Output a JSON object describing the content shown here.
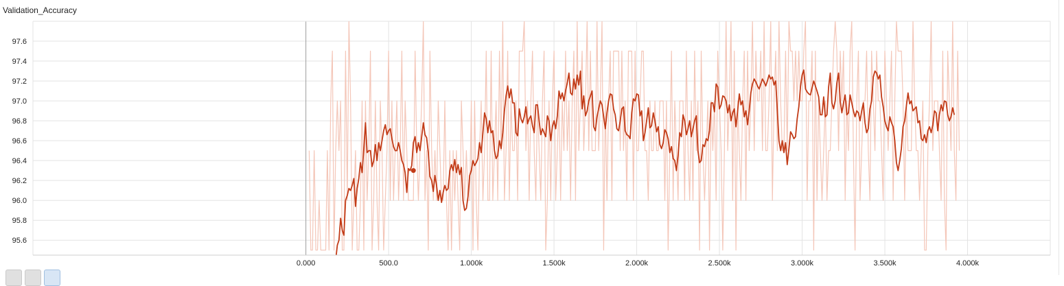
{
  "card": {
    "title": "Validation_Accuracy"
  },
  "colors": {
    "raw": "#f4c6b8",
    "smoothed": "#c23b17",
    "grid": "#e3e3e3",
    "axis": "#9e9e9e"
  },
  "chart_data": {
    "type": "line",
    "title": "Validation_Accuracy",
    "xlabel": "",
    "ylabel": "",
    "xlim": [
      -1650,
      4500
    ],
    "ylim": [
      95.45,
      97.8
    ],
    "x_ticks": [
      0,
      500,
      1000,
      1500,
      2000,
      2500,
      3000,
      3500,
      4000
    ],
    "x_tick_labels": [
      "0.000",
      "500.0",
      "1.000k",
      "1.500k",
      "2.000k",
      "2.500k",
      "3.000k",
      "3.500k",
      "4.000k"
    ],
    "y_ticks": [
      95.6,
      95.8,
      96.0,
      96.2,
      96.4,
      96.6,
      96.8,
      97.0,
      97.2,
      97.4,
      97.6
    ],
    "y_tick_labels": [
      "95.6",
      "95.8",
      "96.0",
      "96.2",
      "96.4",
      "96.6",
      "96.8",
      "97.0",
      "97.2",
      "97.4",
      "97.6"
    ],
    "grid": true,
    "highlight_point": {
      "x": 650,
      "y": 96.3
    },
    "series": [
      {
        "style": "raw",
        "x_start": 20,
        "x_step": 10,
        "values": [
          96.5,
          95.5,
          95.5,
          96.5,
          95.5,
          95.5,
          96.0,
          95.5,
          95.5,
          95.5,
          95.5,
          96.5,
          95.5,
          97.0,
          97.5,
          95.5,
          96.5,
          97.0,
          96.5,
          97.0,
          95.5,
          95.5,
          97.5,
          96.0,
          97.8,
          97.0,
          95.5,
          96.0,
          96.5,
          95.5,
          95.5,
          96.0,
          97.0,
          95.5,
          97.0,
          96.0,
          96.5,
          97.5,
          95.5,
          96.0,
          97.0,
          96.0,
          95.5,
          97.0,
          96.5,
          95.5,
          96.0,
          96.5,
          97.5,
          96.0,
          97.0,
          96.0,
          96.5,
          97.0,
          96.0,
          96.5,
          97.5,
          96.0,
          97.0,
          96.5,
          96.0,
          96.0,
          96.0,
          96.0,
          97.5,
          96.5,
          96.0,
          96.5,
          97.0,
          97.8,
          96.0,
          96.5,
          95.5,
          97.5,
          96.5,
          96.0,
          96.5,
          96.0,
          97.0,
          96.5,
          96.0,
          96.0,
          97.0,
          96.0,
          95.5,
          96.5,
          95.5,
          96.5,
          96.0,
          96.5,
          96.0,
          95.5,
          97.0,
          96.5,
          96.0,
          96.5,
          96.0,
          96.0,
          97.0,
          95.5,
          97.0,
          96.0,
          95.5,
          96.5,
          97.0,
          96.0,
          96.5,
          97.5,
          96.0,
          96.0,
          97.5,
          96.0,
          96.5,
          97.0,
          96.0,
          97.5,
          96.5,
          97.8,
          96.0,
          96.5,
          97.5,
          96.0,
          97.0,
          96.5,
          96.5,
          97.0,
          96.0,
          97.5,
          97.5,
          97.5,
          97.8,
          96.5,
          97.0,
          96.0,
          97.0,
          97.5,
          96.5,
          96.0,
          97.0,
          96.5,
          96.0,
          97.0,
          97.5,
          95.5,
          96.0,
          97.0,
          96.0,
          97.0,
          97.5,
          96.0,
          96.5,
          97.0,
          96.0,
          97.0,
          96.5,
          97.5,
          96.5,
          97.0,
          96.0,
          97.0,
          97.5,
          96.0,
          97.8,
          96.5,
          97.0,
          97.5,
          96.5,
          97.0,
          97.8,
          96.5,
          97.5,
          96.5,
          96.5,
          96.5,
          97.8,
          96.5,
          97.0,
          97.8,
          95.5,
          97.0,
          96.0,
          97.0,
          97.5,
          96.0,
          97.5,
          97.5,
          97.5,
          97.5,
          96.5,
          97.5,
          96.5,
          97.0,
          96.0,
          97.5,
          97.5,
          97.5,
          96.0,
          97.5,
          96.5,
          96.5,
          97.0,
          97.5,
          97.5,
          96.5,
          96.5,
          96.0,
          97.0,
          96.5,
          96.5,
          97.0,
          96.5,
          96.5,
          97.0,
          97.0,
          97.0,
          96.0,
          97.0,
          95.5,
          96.5,
          97.5,
          96.0,
          97.0,
          96.5,
          96.0,
          97.0,
          97.0,
          97.0,
          96.0,
          97.5,
          96.5,
          96.0,
          97.0,
          96.0,
          97.5,
          96.5,
          97.0,
          95.5,
          97.5,
          96.5,
          96.0,
          96.5,
          97.0,
          95.5,
          97.0,
          96.5,
          97.0,
          96.0,
          97.5,
          97.0,
          96.5,
          95.5,
          96.5,
          97.8,
          96.5,
          97.0,
          97.8,
          96.0,
          97.5,
          95.5,
          97.0,
          96.5,
          96.0,
          97.0,
          97.5,
          96.0,
          97.5,
          96.5,
          97.0,
          97.8,
          96.5,
          97.5,
          97.0,
          97.0,
          97.5,
          96.5,
          97.8,
          96.5,
          96.5,
          97.0,
          97.8,
          96.0,
          97.0,
          97.5,
          96.5,
          97.8,
          97.0,
          96.5,
          96.5,
          97.5,
          96.5,
          97.8,
          97.5,
          97.5,
          97.0,
          97.5,
          97.0,
          97.5,
          97.0,
          97.0,
          97.5,
          97.8,
          96.0,
          97.0,
          97.0,
          97.5,
          95.5,
          97.5,
          96.0,
          97.0,
          96.5,
          96.0,
          96.5,
          97.0,
          96.0,
          96.5,
          96.5,
          97.0,
          97.5,
          97.8,
          97.5,
          96.5,
          97.5,
          97.0,
          97.5,
          96.0,
          97.0,
          96.5,
          97.5,
          97.8,
          96.5,
          95.5,
          97.0,
          97.5,
          96.0,
          96.5,
          97.0,
          97.0,
          97.5,
          96.5,
          96.0,
          97.5,
          97.0,
          96.5,
          97.5,
          97.0,
          97.0,
          96.5,
          96.0,
          97.5,
          97.0,
          96.5,
          97.0,
          97.5,
          96.0,
          97.0,
          97.8,
          97.5,
          97.5,
          97.5,
          97.0,
          96.0,
          97.0,
          96.5,
          96.5,
          96.5,
          97.8,
          97.0,
          96.5,
          96.5,
          96.0,
          96.5,
          97.0,
          95.5,
          95.5,
          96.5,
          97.0,
          97.8,
          96.5,
          97.0,
          97.0,
          97.0,
          96.5,
          96.0,
          97.5,
          96.0,
          95.5,
          97.5,
          97.0,
          96.5,
          97.8,
          96.5,
          96.0,
          97.5,
          96.5
        ]
      },
      {
        "style": "smoothed",
        "x_start": 180,
        "x_step": 10,
        "values": [
          95.4,
          95.55,
          95.6,
          95.82,
          95.7,
          95.65,
          96.0,
          96.05,
          96.12,
          96.1,
          96.15,
          96.22,
          95.94,
          96.12,
          96.22,
          96.38,
          96.28,
          96.52,
          96.78,
          96.48,
          96.5,
          96.5,
          96.34,
          96.4,
          96.56,
          96.4,
          96.58,
          96.5,
          96.6,
          96.7,
          96.76,
          96.66,
          96.7,
          96.72,
          96.62,
          96.54,
          96.5,
          96.5,
          96.58,
          96.5,
          96.4,
          96.36,
          96.28,
          96.08,
          96.32,
          96.3,
          96.35,
          96.58,
          96.64,
          96.48,
          96.58,
          96.5,
          96.64,
          96.78,
          96.66,
          96.63,
          96.48,
          96.24,
          96.2,
          96.09,
          96.25,
          96.15,
          96.0,
          96.1,
          95.98,
          96.08,
          96.15,
          96.1,
          96.12,
          96.3,
          96.36,
          96.3,
          96.41,
          96.28,
          96.36,
          96.26,
          96.33,
          96.0,
          95.9,
          95.92,
          96.04,
          96.25,
          96.3,
          96.4,
          96.35,
          96.38,
          96.42,
          96.58,
          96.48,
          96.68,
          96.88,
          96.82,
          96.68,
          96.8,
          96.68,
          96.7,
          96.5,
          96.42,
          96.45,
          96.6,
          96.52,
          96.68,
          96.9,
          97.05,
          97.15,
          97.03,
          97.12,
          96.98,
          96.98,
          96.68,
          96.65,
          96.92,
          96.82,
          96.78,
          96.84,
          96.94,
          96.77,
          96.82,
          96.85,
          96.75,
          96.68,
          96.96,
          96.96,
          96.8,
          96.66,
          96.72,
          96.68,
          96.64,
          96.85,
          96.8,
          96.6,
          96.74,
          96.8,
          96.72,
          96.85,
          97.1,
          97.02,
          97.08,
          97.0,
          97.1,
          97.18,
          97.28,
          97.08,
          97.06,
          97.22,
          97.12,
          97.26,
          97.16,
          97.3,
          96.92,
          97.05,
          96.85,
          96.9,
          97.0,
          97.05,
          97.1,
          96.74,
          96.7,
          96.84,
          96.92,
          97.0,
          96.96,
          96.84,
          96.72,
          96.88,
          97.0,
          97.07,
          97.06,
          96.92,
          96.86,
          96.72,
          96.7,
          96.8,
          96.92,
          96.94,
          96.7,
          96.66,
          96.65,
          96.62,
          96.88,
          97.02,
          97.0,
          97.07,
          97.06,
          96.85,
          96.9,
          96.6,
          96.68,
          96.8,
          96.93,
          96.73,
          96.75,
          96.88,
          96.8,
          96.69,
          96.74,
          96.56,
          96.52,
          96.58,
          96.71,
          96.68,
          96.62,
          96.48,
          96.54,
          96.42,
          96.4,
          96.3,
          96.45,
          96.68,
          96.64,
          96.86,
          96.8,
          96.66,
          96.72,
          96.8,
          96.64,
          96.72,
          96.8,
          96.85,
          96.5,
          96.38,
          96.4,
          96.56,
          96.54,
          96.62,
          96.6,
          96.7,
          96.98,
          96.98,
          96.89,
          97.17,
          97.14,
          96.92,
          96.96,
          97.05,
          97.04,
          97.0,
          96.88,
          96.96,
          96.8,
          96.88,
          96.92,
          96.74,
          96.9,
          97.07,
          96.96,
          97.0,
          96.84,
          96.9,
          96.76,
          96.9,
          97.08,
          97.17,
          97.22,
          97.19,
          97.15,
          97.12,
          97.17,
          97.22,
          97.19,
          97.15,
          97.2,
          97.26,
          97.22,
          97.24,
          97.16,
          97.2,
          96.9,
          96.6,
          96.5,
          96.6,
          96.48,
          96.58,
          96.36,
          96.52,
          96.69,
          96.66,
          96.62,
          96.64,
          96.82,
          96.94,
          97.14,
          97.26,
          97.31,
          97.12,
          97.09,
          97.07,
          97.06,
          97.13,
          97.2,
          97.15,
          97.1,
          97.04,
          96.86,
          96.86,
          97.04,
          96.84,
          96.86,
          97.14,
          97.28,
          96.98,
          96.92,
          97.0,
          97.18,
          97.28,
          97.0,
          96.88,
          96.98,
          97.06,
          96.86,
          96.88,
          97.06,
          96.98,
          96.9,
          96.84,
          96.9,
          96.88,
          96.8,
          96.9,
          96.98,
          96.78,
          96.68,
          96.72,
          96.92,
          97.0,
          97.24,
          97.3,
          97.28,
          97.22,
          97.26,
          97.04,
          96.94,
          96.8,
          96.74,
          96.7,
          96.84,
          96.78,
          96.74,
          96.6,
          96.38,
          96.3,
          96.4,
          96.52,
          96.74,
          96.8,
          96.95,
          97.08,
          96.97,
          97.0,
          96.9,
          96.92,
          96.94,
          96.78,
          96.8,
          96.62,
          96.6,
          96.66,
          96.58,
          96.7,
          96.74,
          96.68,
          96.76,
          96.9,
          96.88,
          96.7,
          96.86,
          96.96,
          96.9,
          97.0,
          96.99,
          96.86,
          96.8,
          96.84,
          96.93,
          96.86
        ]
      }
    ]
  }
}
